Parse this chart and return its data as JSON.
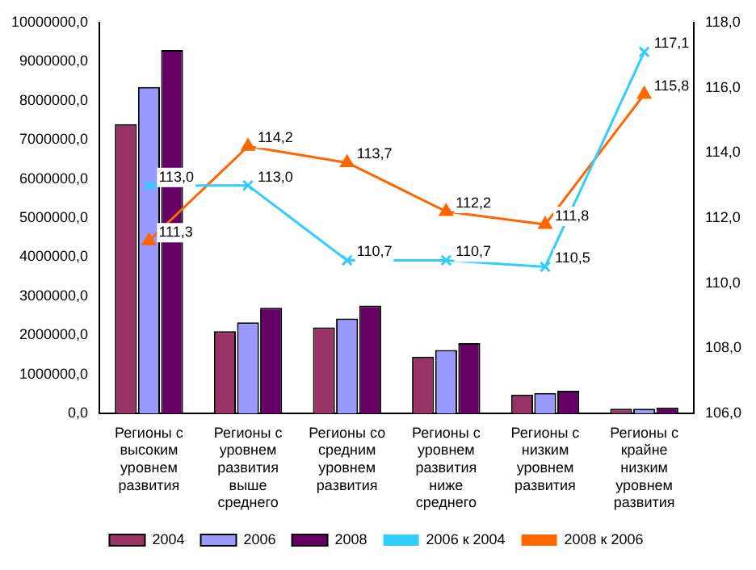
{
  "chart_data": {
    "type": "bar",
    "categories": [
      "Регионы с высоким уровнем развития",
      "Регионы с уровнем развития выше среднего",
      "Регионы со средним уровнем развития",
      "Регионы с уровнем развития ниже среднего",
      "Регионы с низким уровнем развития",
      "Регионы с крайне низким уровнем развития"
    ],
    "series": [
      {
        "name": "2004",
        "color": "#993366",
        "values": [
          7400000,
          2100000,
          2200000,
          1450000,
          480000,
          120000
        ]
      },
      {
        "name": "2006",
        "color": "#9999ff",
        "values": [
          8350000,
          2330000,
          2430000,
          1620000,
          520000,
          120000
        ]
      },
      {
        "name": "2008",
        "color": "#660066",
        "values": [
          9300000,
          2700000,
          2760000,
          1800000,
          580000,
          150000
        ]
      },
      {
        "name": "2006 к 2004",
        "type": "line",
        "axis": "y2",
        "marker": "cross",
        "color": "#33ccff",
        "values": [
          113.0,
          113.0,
          110.7,
          110.7,
          110.5,
          117.1
        ],
        "value_labels": [
          "113,0",
          "113,0",
          "110,7",
          "110,7",
          "110,5",
          "117,1"
        ]
      },
      {
        "name": "2008 к 2006",
        "type": "line",
        "axis": "y2",
        "marker": "triangle",
        "color": "#ff6600",
        "values": [
          111.3,
          114.2,
          113.7,
          112.2,
          111.8,
          115.8
        ],
        "value_labels": [
          "111,3",
          "114,2",
          "113,7",
          "112,2",
          "111,8",
          "115,8"
        ]
      }
    ],
    "ylim": [
      0,
      10000000
    ],
    "yticks": [
      {
        "value": 0,
        "label": "0,0"
      },
      {
        "value": 1000000,
        "label": "1000000,0"
      },
      {
        "value": 2000000,
        "label": "2000000,0"
      },
      {
        "value": 3000000,
        "label": "3000000,0"
      },
      {
        "value": 4000000,
        "label": "4000000,0"
      },
      {
        "value": 5000000,
        "label": "5000000,0"
      },
      {
        "value": 6000000,
        "label": "6000000,0"
      },
      {
        "value": 7000000,
        "label": "7000000,0"
      },
      {
        "value": 8000000,
        "label": "8000000,0"
      },
      {
        "value": 9000000,
        "label": "9000000,0"
      },
      {
        "value": 10000000,
        "label": "10000000,0"
      }
    ],
    "y2lim": [
      106,
      118
    ],
    "y2ticks": [
      {
        "value": 106,
        "label": "106,0"
      },
      {
        "value": 108,
        "label": "108,0"
      },
      {
        "value": 110,
        "label": "110,0"
      },
      {
        "value": 112,
        "label": "112,0"
      },
      {
        "value": 114,
        "label": "114,0"
      },
      {
        "value": 116,
        "label": "116,0"
      },
      {
        "value": 118,
        "label": "118,0"
      }
    ],
    "grid": false,
    "legend": "bottom"
  }
}
